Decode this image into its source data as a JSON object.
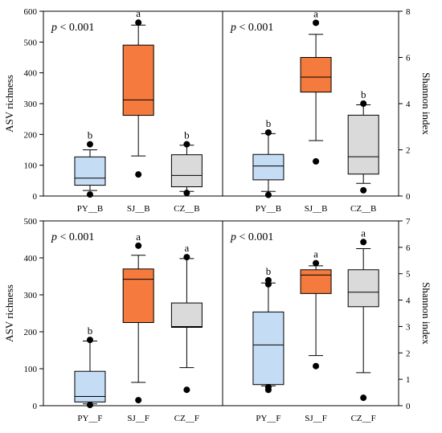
{
  "colors": {
    "PY": "#c5dcf5",
    "SJ": "#f47a3d",
    "CZ": "#dadada"
  },
  "chart_data": [
    {
      "type": "box",
      "panel": "top-left",
      "annotation": "p < 0.001",
      "ylabel": "ASV richness",
      "ylabel_side": "left",
      "ylim": [
        0,
        600
      ],
      "yticks": [
        "0",
        "100",
        "200",
        "300",
        "400",
        "500",
        "600"
      ],
      "categories": [
        "PY__B",
        "SJ__B",
        "CZ__B"
      ],
      "boxes": [
        {
          "q1": 35,
          "median": 58,
          "q3": 127,
          "whislo": 18,
          "whishi": 150,
          "outliers": [
            5,
            168
          ],
          "letter": "b"
        },
        {
          "q1": 262,
          "median": 312,
          "q3": 490,
          "whislo": 130,
          "whishi": 555,
          "outliers": [
            70,
            563
          ],
          "letter": "a"
        },
        {
          "q1": 30,
          "median": 67,
          "q3": 134,
          "whislo": 15,
          "whishi": 165,
          "outliers": [
            10,
            168
          ],
          "letter": "b"
        }
      ]
    },
    {
      "type": "box",
      "panel": "top-right",
      "annotation": "p < 0.001",
      "ylabel": "Shannon index",
      "ylabel_side": "right",
      "ylim": [
        0,
        8
      ],
      "yticks": [
        "0",
        "2",
        "4",
        "6",
        "8"
      ],
      "categories": [
        "PY__B",
        "SJ__B",
        "CZ__B"
      ],
      "boxes": [
        {
          "q1": 0.7,
          "median": 1.3,
          "q3": 1.8,
          "whislo": 0.2,
          "whishi": 2.7,
          "outliers": [
            0.05,
            2.75
          ],
          "letter": "b"
        },
        {
          "q1": 4.5,
          "median": 5.15,
          "q3": 6.0,
          "whislo": 2.4,
          "whishi": 7.0,
          "outliers": [
            1.5,
            7.5
          ],
          "letter": "a"
        },
        {
          "q1": 0.95,
          "median": 1.7,
          "q3": 3.5,
          "whislo": 0.55,
          "whishi": 3.95,
          "outliers": [
            0.25,
            4.0
          ],
          "letter": "b"
        }
      ]
    },
    {
      "type": "box",
      "panel": "bottom-left",
      "annotation": "p < 0.001",
      "ylabel": "ASV richness",
      "ylabel_side": "left",
      "ylim": [
        0,
        500
      ],
      "yticks": [
        "0",
        "100",
        "200",
        "300",
        "400",
        "500"
      ],
      "categories": [
        "PY__F",
        "SJ__F",
        "CZ__F"
      ],
      "boxes": [
        {
          "q1": 10,
          "median": 25,
          "q3": 93,
          "whislo": 5,
          "whishi": 175,
          "outliers": [
            2,
            178
          ],
          "letter": "b"
        },
        {
          "q1": 225,
          "median": 342,
          "q3": 370,
          "whislo": 63,
          "whishi": 407,
          "outliers": [
            15,
            433
          ],
          "letter": "a"
        },
        {
          "q1": 212,
          "median": 214,
          "q3": 278,
          "whislo": 103,
          "whishi": 398,
          "outliers": [
            43,
            402
          ],
          "letter": "a"
        }
      ]
    },
    {
      "type": "box",
      "panel": "bottom-right",
      "annotation": "p < 0.001",
      "ylabel": "Shannon index",
      "ylabel_side": "right",
      "ylim": [
        0,
        7
      ],
      "yticks": [
        "0",
        "1",
        "2",
        "3",
        "4",
        "5",
        "6",
        "7"
      ],
      "categories": [
        "PY__F",
        "SJ__F",
        "CZ__F"
      ],
      "boxes": [
        {
          "q1": 0.8,
          "median": 2.3,
          "q3": 3.55,
          "whislo": 0.75,
          "whishi": 4.65,
          "outliers": [
            0.6,
            0.7,
            4.6,
            4.75
          ],
          "letter": "b"
        },
        {
          "q1": 4.25,
          "median": 4.95,
          "q3": 5.15,
          "whislo": 1.9,
          "whishi": 5.3,
          "outliers": [
            1.5,
            5.4
          ],
          "letter": "a"
        },
        {
          "q1": 3.75,
          "median": 4.3,
          "q3": 5.15,
          "whislo": 1.25,
          "whishi": 5.95,
          "outliers": [
            0.3,
            6.2
          ],
          "letter": "a"
        }
      ]
    }
  ]
}
